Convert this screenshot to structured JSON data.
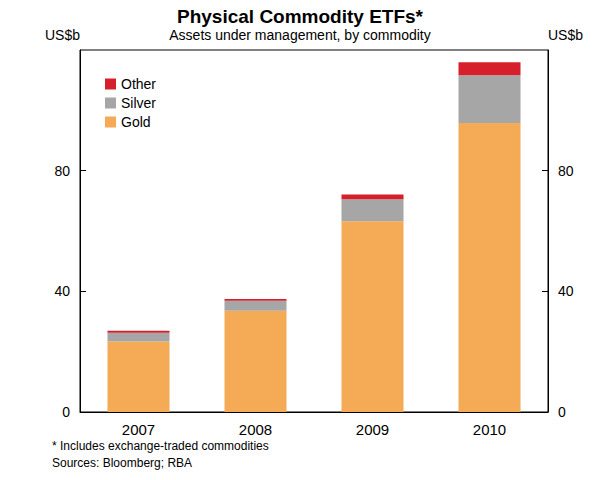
{
  "chart_data": {
    "type": "bar",
    "title": "Physical Commodity ETFs*",
    "subtitle": "Assets under management, by commodity",
    "y_label": "US$b",
    "y2_label": "US$b",
    "annotations": [
      "* Includes exchange-traded commodities",
      "Sources: Bloomberg; RBA"
    ],
    "categories": [
      "2007",
      "2008",
      "2009",
      "2010"
    ],
    "series": [
      {
        "name": "Gold",
        "color": "#f5aa55",
        "values": [
          23.4,
          33.6,
          63.2,
          95.8
        ]
      },
      {
        "name": "Silver",
        "color": "#a6a6a6",
        "values": [
          2.9,
          3.3,
          7.3,
          15.8
        ]
      },
      {
        "name": "Other",
        "color": "#d71f2b",
        "values": [
          0.6,
          0.6,
          1.6,
          4.3
        ]
      }
    ],
    "stacked": true,
    "ylim": [
      0,
      120
    ],
    "yticks": [
      0,
      40,
      80
    ],
    "y2lim": [
      0,
      120
    ],
    "y2ticks": [
      0,
      40,
      80
    ],
    "grid": false,
    "legend": "top-left",
    "data_labels": false
  }
}
